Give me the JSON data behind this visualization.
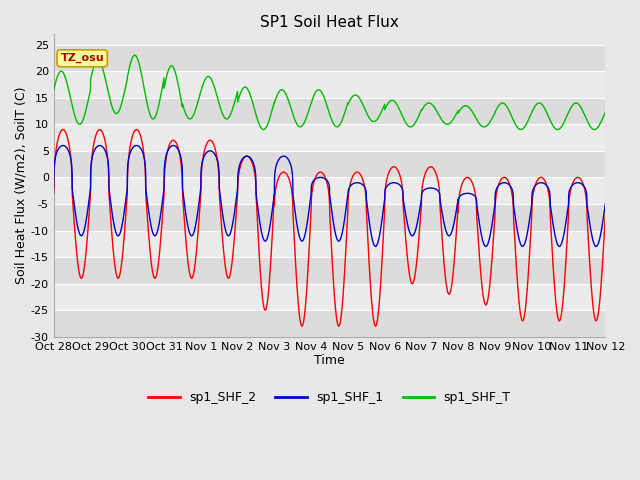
{
  "title": "SP1 Soil Heat Flux",
  "xlabel": "Time",
  "ylabel": "Soil Heat Flux (W/m2), SoilT (C)",
  "ylim": [
    -30,
    27
  ],
  "yticks": [
    -30,
    -25,
    -20,
    -15,
    -10,
    -5,
    0,
    5,
    10,
    15,
    20,
    25
  ],
  "xtick_labels": [
    "Oct 28",
    "Oct 29",
    "Oct 30",
    "Oct 31",
    "Nov 1",
    "Nov 2",
    "Nov 3",
    "Nov 4",
    "Nov 5",
    "Nov 6",
    "Nov 7",
    "Nov 8",
    "Nov 9",
    "Nov 10",
    "Nov 11",
    "Nov 12"
  ],
  "tz_label": "TZ_osu",
  "legend": [
    "sp1_SHF_2",
    "sp1_SHF_1",
    "sp1_SHF_T"
  ],
  "colors": {
    "sp1_SHF_2": "#ff0000",
    "sp1_SHF_1": "#0000cc",
    "sp1_SHF_T": "#00bb00"
  },
  "bg_band_dark": "#dcdcdc",
  "bg_band_light": "#ebebeb",
  "fig_bg": "#e8e8e8",
  "title_fontsize": 11,
  "axis_fontsize": 9,
  "tick_fontsize": 8,
  "linewidth": 1.0
}
